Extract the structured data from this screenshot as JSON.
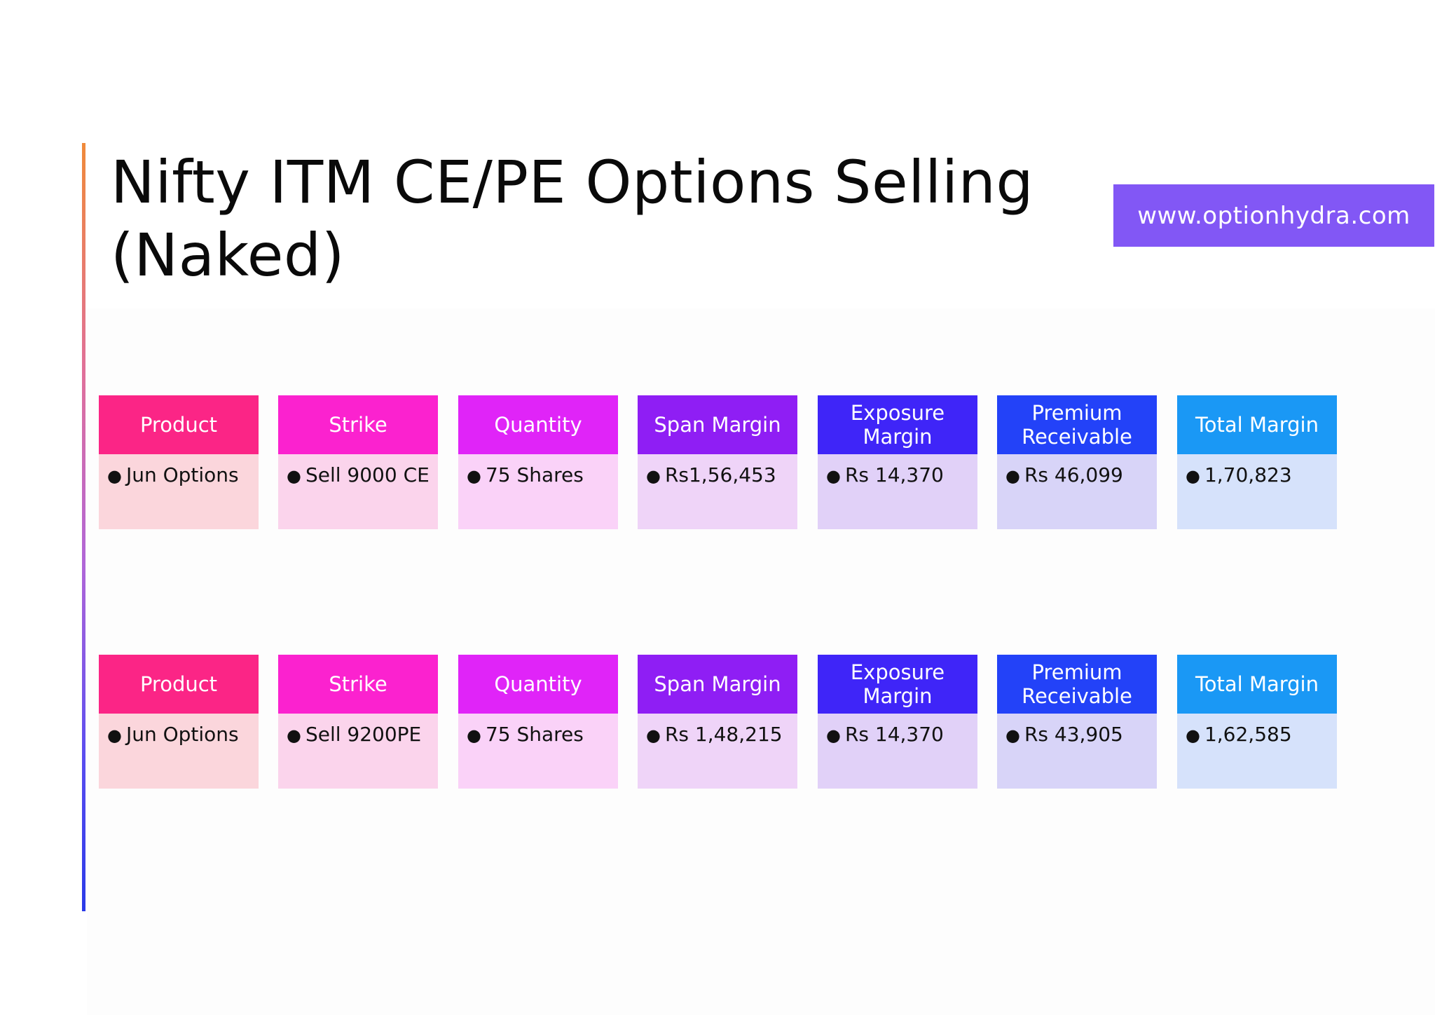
{
  "title": "Nifty ITM CE/PE Options Selling (Naked)",
  "url_badge": "www.optionhydra.com",
  "colors": {
    "badge": "#8257f5",
    "headers": [
      "#fb2586",
      "#fb22cf",
      "#e024f8",
      "#8f1ef4",
      "#3f25f8",
      "#2342f8",
      "#1a98f5"
    ],
    "bodies": [
      "#fbd6dc",
      "#fbd4ec",
      "#fad2f8",
      "#efd4f8",
      "#e1d1f8",
      "#d8d4f8",
      "#d6e2fb"
    ]
  },
  "tables": [
    {
      "headers": [
        "Product",
        "Strike",
        "Quantity",
        "Span Margin",
        "Exposure Margin",
        "Premium Receivable",
        "Total Margin"
      ],
      "values": [
        "Jun Options",
        "Sell 9000 CE",
        "75 Shares",
        "Rs1,56,453",
        "Rs 14,370",
        "Rs 46,099",
        "1,70,823"
      ]
    },
    {
      "headers": [
        "Product",
        "Strike",
        "Quantity",
        "Span Margin",
        "Exposure Margin",
        "Premium Receivable",
        "Total Margin"
      ],
      "values": [
        "Jun Options",
        "Sell 9200PE",
        "75 Shares",
        "Rs 1,48,215",
        "Rs 14,370",
        "Rs 43,905",
        "1,62,585"
      ]
    }
  ]
}
